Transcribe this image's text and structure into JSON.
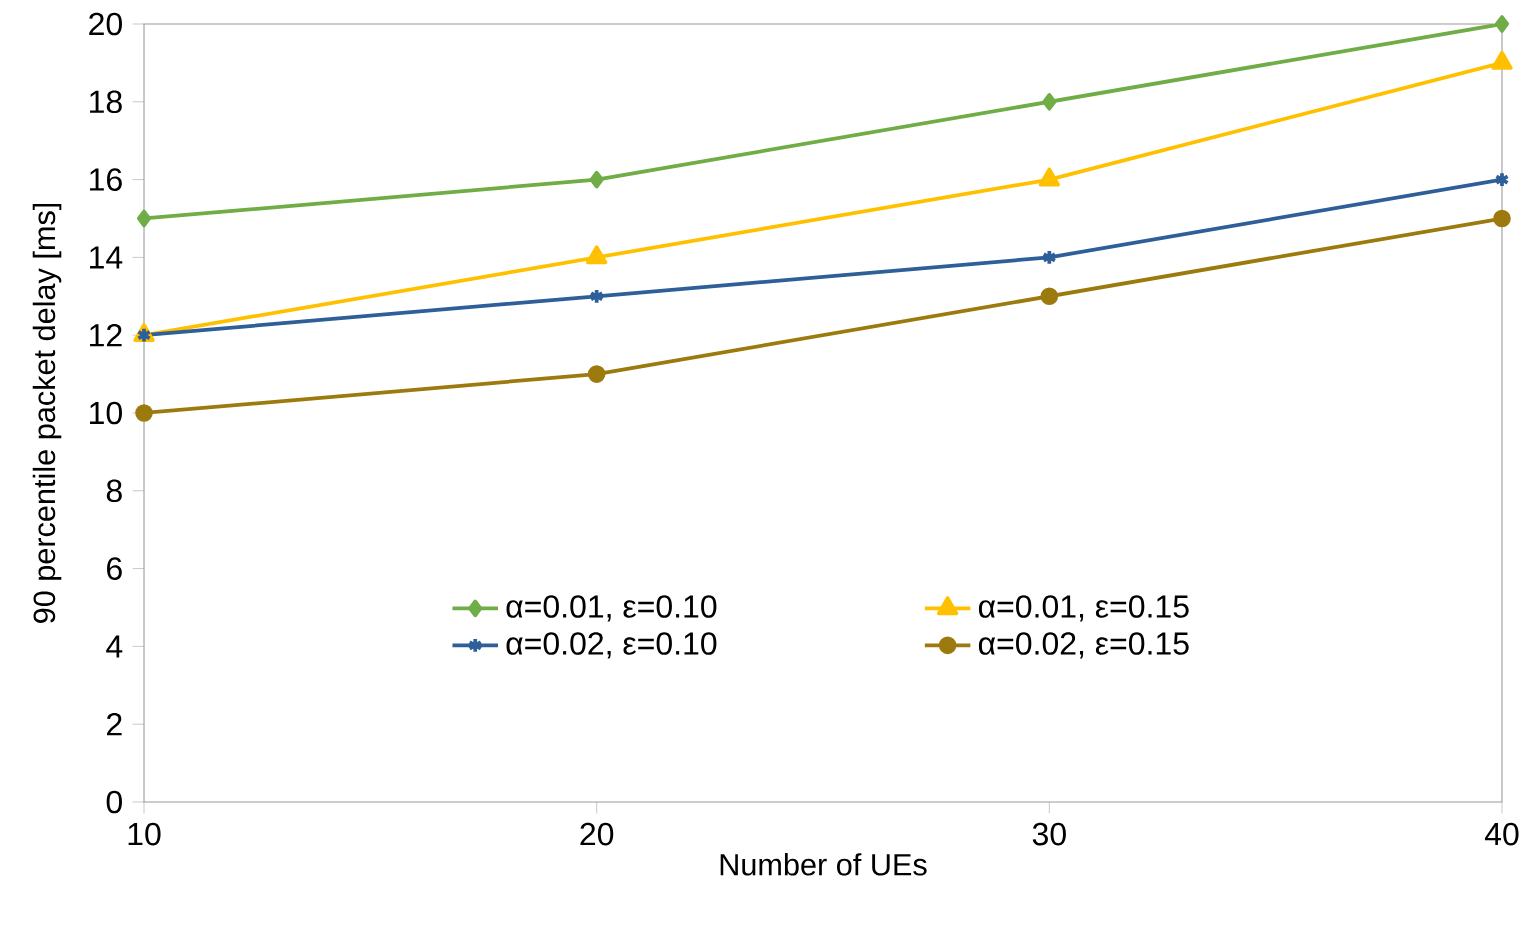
{
  "chart_data": {
    "type": "line",
    "xlabel": "Number of UEs",
    "ylabel": "90 percentile packet delay [ms]",
    "x": [
      10,
      20,
      30,
      40
    ],
    "xlim": [
      10,
      40
    ],
    "xticks": [
      10,
      20,
      30,
      40
    ],
    "ylim": [
      0,
      20
    ],
    "yticks": [
      0,
      2,
      4,
      6,
      8,
      10,
      12,
      14,
      16,
      18,
      20
    ],
    "grid": false,
    "legend": "bottom",
    "line_style": "solid",
    "series": [
      {
        "name": "α=0.01, ε=0.10",
        "color": "#70ad47",
        "marker": "diamond",
        "values": [
          15,
          16,
          18,
          20
        ]
      },
      {
        "name": "α=0.01, ε=0.15",
        "color": "#ffc000",
        "marker": "triangle",
        "values": [
          12,
          14,
          16,
          19
        ]
      },
      {
        "name": "α=0.02, ε=0.10",
        "color": "#2e5f98",
        "marker": "cross",
        "values": [
          12,
          13,
          14,
          16
        ]
      },
      {
        "name": "α=0.02, ε=0.15",
        "color": "#9c7a0e",
        "marker": "circle",
        "values": [
          10,
          11,
          13,
          15
        ]
      }
    ]
  }
}
